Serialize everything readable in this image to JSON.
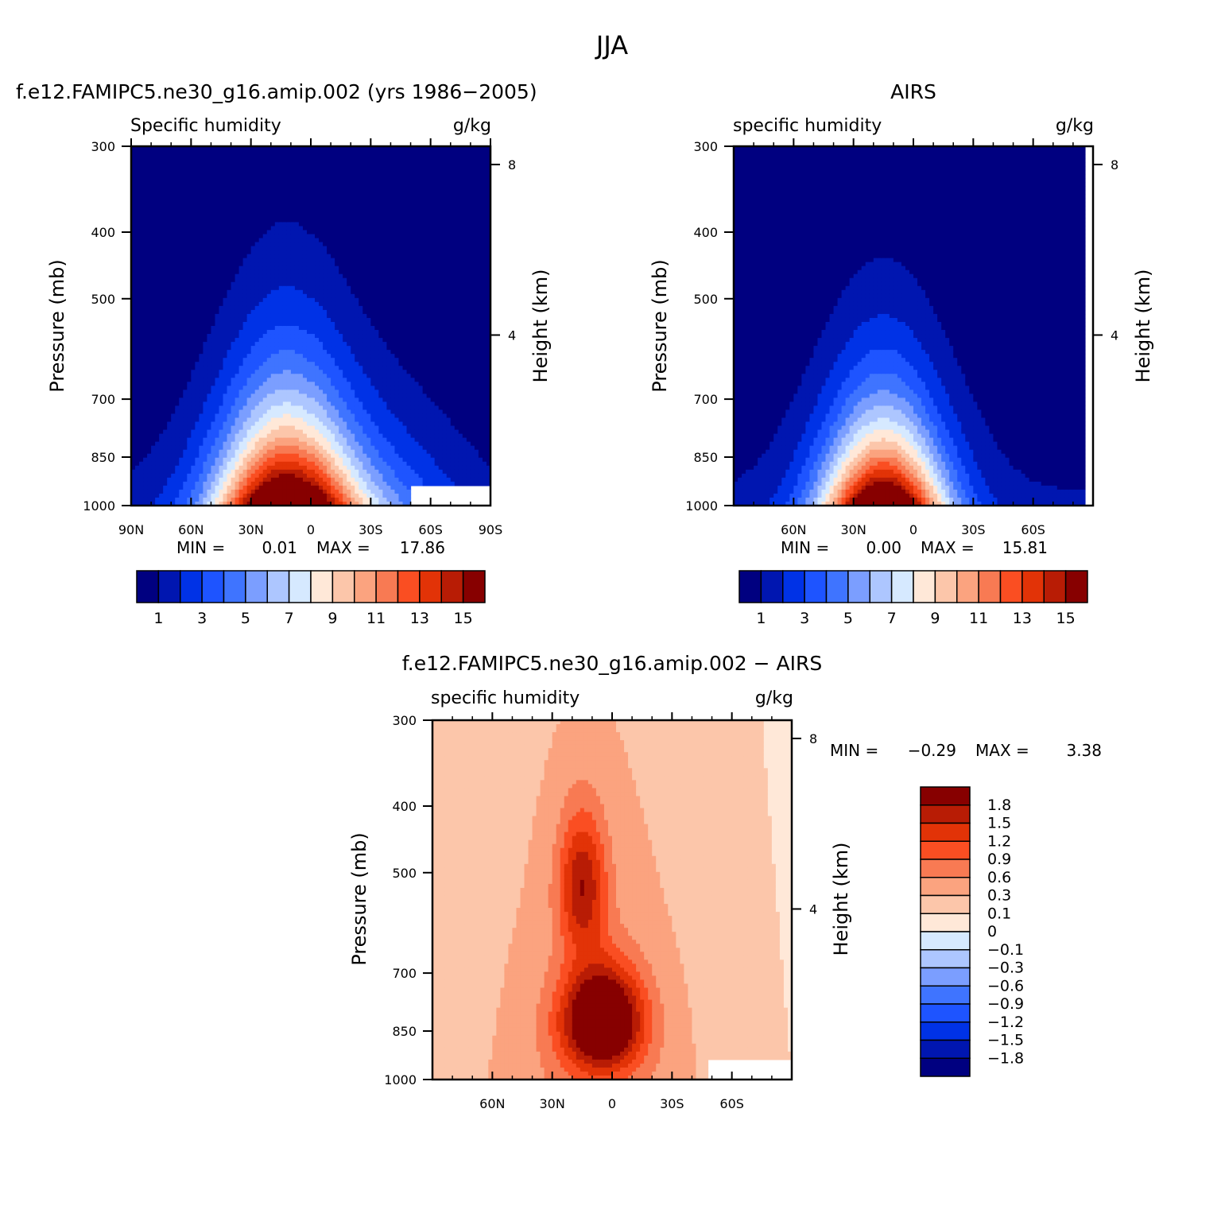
{
  "figure_title": "JJA",
  "chart_data": [
    {
      "type": "contour",
      "title": "f.e12.FAMIPC5.ne30_g16.amip.002 (yrs 1986−2005)",
      "left_label": "Specific humidity",
      "right_label": "g/kg",
      "ylabel": "Pressure (mb)",
      "ylabel_right": "Height (km)",
      "x_ticks": [
        "90N",
        "60N",
        "30N",
        "0",
        "30S",
        "60S",
        "90S"
      ],
      "y_ticks": [
        "300",
        "400",
        "500",
        "700",
        "850",
        "1000"
      ],
      "height_ticks": [
        "8",
        "4"
      ],
      "stats": {
        "min_label": "MIN =",
        "min": "0.01",
        "max_label": "MAX =",
        "max": "17.86"
      },
      "colorbar": {
        "colors": [
          "#000080",
          "#0016b0",
          "#0032e6",
          "#1e54ff",
          "#3f74ff",
          "#7b9eff",
          "#adc6ff",
          "#d6e9ff",
          "#ffe8d8",
          "#fcc6aa",
          "#fba37f",
          "#f87a53",
          "#fa4e22",
          "#e23307",
          "#b81c05",
          "#870000"
        ],
        "labels": [
          "1",
          "3",
          "5",
          "7",
          "9",
          "11",
          "13",
          "15"
        ]
      }
    },
    {
      "type": "contour",
      "title": "AIRS",
      "left_label": "specific humidity",
      "right_label": "g/kg",
      "ylabel": "Pressure (mb)",
      "ylabel_right": "Height (km)",
      "x_ticks": [
        "60N",
        "30N",
        "0",
        "30S",
        "60S"
      ],
      "y_ticks": [
        "300",
        "400",
        "500",
        "700",
        "850",
        "1000"
      ],
      "height_ticks": [
        "8",
        "4"
      ],
      "stats": {
        "min_label": "MIN =",
        "min": "0.00",
        "max_label": "MAX =",
        "max": "15.81"
      },
      "colorbar": {
        "colors": [
          "#000080",
          "#0016b0",
          "#0032e6",
          "#1e54ff",
          "#3f74ff",
          "#7b9eff",
          "#adc6ff",
          "#d6e9ff",
          "#ffe8d8",
          "#fcc6aa",
          "#fba37f",
          "#f87a53",
          "#fa4e22",
          "#e23307",
          "#b81c05",
          "#870000"
        ],
        "labels": [
          "1",
          "3",
          "5",
          "7",
          "9",
          "11",
          "13",
          "15"
        ]
      }
    },
    {
      "type": "contour",
      "title": "f.e12.FAMIPC5.ne30_g16.amip.002 − AIRS",
      "left_label": "specific humidity",
      "right_label": "g/kg",
      "ylabel": "Pressure (mb)",
      "ylabel_right": "Height (km)",
      "x_ticks": [
        "60N",
        "30N",
        "0",
        "30S",
        "60S"
      ],
      "y_ticks": [
        "300",
        "400",
        "500",
        "700",
        "850",
        "1000"
      ],
      "height_ticks": [
        "8",
        "4"
      ],
      "stats": {
        "min_label": "MIN =",
        "min": "−0.29",
        "max_label": "MAX =",
        "max": "3.38"
      },
      "colorbar": {
        "colors": [
          "#870000",
          "#b81c05",
          "#e23307",
          "#fa4e22",
          "#f87a53",
          "#fba37f",
          "#fcc6aa",
          "#ffe8d8",
          "#d6e9ff",
          "#adc6ff",
          "#7b9eff",
          "#3f74ff",
          "#1e54ff",
          "#0032e6",
          "#0016b0",
          "#000080"
        ],
        "labels": [
          "1.8",
          "1.5",
          "1.2",
          "0.9",
          "0.6",
          "0.3",
          "0.1",
          "0",
          "−0.1",
          "−0.3",
          "−0.6",
          "−0.9",
          "−1.2",
          "−1.5",
          "−1.8"
        ]
      }
    }
  ]
}
